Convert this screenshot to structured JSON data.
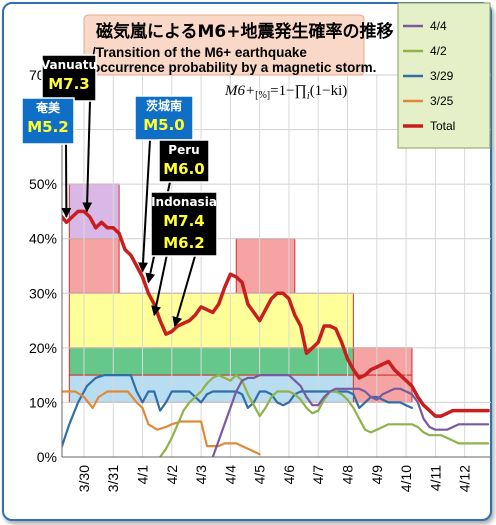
{
  "chart_data": {
    "type": "line",
    "title": "磁気嵐によるM6+地震発生確率の推移",
    "subtitle": "/Transition of the M6+ earthquake occurrence probability by a magnetic storm.",
    "formula": "M6+[%]=1−∏i(1−ki)",
    "formula_parts": {
      "lhs": "M6+",
      "sub": "[%]",
      "rhs": "=1−∏",
      "idx": "i",
      "tail": "(1−ki)"
    },
    "xlabel": "",
    "ylabel": "",
    "x_ticks": [
      "3/30",
      "3/31",
      "4/1",
      "4/2",
      "4/3",
      "4/4",
      "4/5",
      "4/6",
      "4/7",
      "4/8",
      "4/9",
      "4/10",
      "4/11",
      "4/12"
    ],
    "x_range": [
      -0.75,
      13.9
    ],
    "ylim": [
      0,
      70
    ],
    "y_ticks": [
      "0%",
      "10%",
      "20%",
      "30%",
      "40%",
      "50%",
      "60%",
      "70%"
    ],
    "grid": true,
    "legend_position": "top-right",
    "legend": [
      {
        "name": "4/4",
        "color": "#7a5a9e"
      },
      {
        "name": "4/2",
        "color": "#8db34a"
      },
      {
        "name": "3/29",
        "color": "#2f6fa8"
      },
      {
        "name": "3/25",
        "color": "#e08a38"
      },
      {
        "name": "Total",
        "color": "#c81e1e"
      }
    ],
    "rects": [
      {
        "x0": -0.5,
        "x1": 1.2,
        "y0": 40,
        "y1": 50,
        "fill": "#d9b8e8"
      },
      {
        "x0": -0.5,
        "x1": 1.2,
        "y0": 30,
        "y1": 40,
        "fill": "#f5a3a3"
      },
      {
        "x0": 5.2,
        "x1": 7.2,
        "y0": 30,
        "y1": 40,
        "fill": "#f5a3a3"
      },
      {
        "x0": -0.5,
        "x1": 9.2,
        "y0": 20,
        "y1": 30,
        "fill": "#ffff99"
      },
      {
        "x0": -0.5,
        "x1": 11.2,
        "y0": 15,
        "y1": 20,
        "fill": "#66c78a"
      },
      {
        "x0": -0.5,
        "x1": 11.2,
        "y0": 10,
        "y1": 15,
        "fill": "#b8dcf0"
      },
      {
        "x0": 9.2,
        "x1": 11.2,
        "y0": 15,
        "y1": 20,
        "fill": "#f5a3a3"
      },
      {
        "x0": 9.2,
        "x1": 11.2,
        "y0": 10,
        "y1": 15,
        "fill": "#f5a3a3"
      }
    ],
    "series": [
      {
        "name": "Total",
        "color": "#c81e1e",
        "width": 3.5,
        "x": [
          -0.75,
          -0.6,
          -0.4,
          -0.2,
          0,
          0.2,
          0.4,
          0.6,
          0.8,
          1,
          1.2,
          1.4,
          1.6,
          1.8,
          2,
          2.2,
          2.4,
          2.6,
          2.8,
          3,
          3.2,
          3.4,
          3.6,
          3.8,
          4,
          4.2,
          4.4,
          4.6,
          4.8,
          5,
          5.2,
          5.4,
          5.6,
          5.8,
          6,
          6.2,
          6.4,
          6.6,
          6.8,
          7,
          7.2,
          7.4,
          7.6,
          7.8,
          8,
          8.2,
          8.4,
          8.6,
          8.8,
          9,
          9.2,
          9.4,
          9.6,
          9.8,
          10,
          10.2,
          10.4,
          10.6,
          10.8,
          11,
          11.2,
          11.4,
          11.6,
          11.8,
          12,
          12.2,
          12.4,
          12.6,
          12.8,
          13,
          13.2,
          13.4,
          13.6,
          13.8
        ],
        "y": [
          44,
          43,
          44,
          45,
          45,
          44,
          42,
          43,
          42,
          42,
          41,
          38,
          37,
          35,
          33,
          30,
          28,
          25,
          22.5,
          23,
          24,
          24.5,
          25,
          26,
          27.5,
          27,
          26.5,
          28,
          31,
          33.5,
          33,
          32,
          28,
          26.5,
          25,
          27,
          29,
          30,
          30,
          29,
          26,
          24,
          19,
          20,
          21,
          24,
          24,
          23.5,
          21,
          18,
          16,
          14.5,
          15,
          16,
          16.5,
          17,
          17.5,
          16,
          15,
          14,
          13,
          11,
          9.5,
          8.5,
          7.5,
          7.5,
          8,
          8.5,
          8.5,
          8.5,
          8.5,
          8.5,
          8.5,
          8.5
        ]
      },
      {
        "name": "3/29",
        "color": "#2f6fa8",
        "width": 2.2,
        "x": [
          -0.75,
          -0.5,
          -0.2,
          0.1,
          0.4,
          0.7,
          1,
          1.3,
          1.6,
          1.8,
          2,
          2.2,
          2.4,
          2.6,
          2.8,
          3,
          3.2,
          3.4,
          3.6,
          3.8,
          4,
          4.2,
          4.4,
          4.6,
          4.8,
          5,
          5.2,
          5.4,
          5.6,
          5.8,
          6,
          6.2,
          6.4,
          6.6,
          6.8,
          7,
          7.2,
          7.4,
          7.6,
          7.8,
          8,
          8.2,
          8.4,
          8.6,
          8.8,
          9,
          9.2,
          9.4,
          9.6,
          9.8,
          10,
          10.2,
          10.4,
          10.6,
          10.8,
          11,
          11.2
        ],
        "y": [
          2,
          6,
          10,
          13,
          14.5,
          15,
          15,
          15,
          15,
          12,
          10,
          12,
          12,
          8.5,
          10,
          12,
          12,
          12,
          12,
          11,
          10,
          11.5,
          12,
          12,
          12,
          12,
          12,
          11.5,
          9,
          10,
          12,
          12,
          11.5,
          10,
          9.5,
          10,
          11.5,
          12,
          12,
          12,
          12,
          12,
          12,
          12,
          12,
          12,
          11.5,
          9,
          10,
          11,
          11,
          10.5,
          10,
          10,
          10,
          9.5,
          9
        ]
      },
      {
        "name": "3/25",
        "color": "#e08a38",
        "width": 2.2,
        "x": [
          -0.75,
          -0.5,
          -0.3,
          0,
          0.3,
          0.5,
          0.8,
          1.2,
          1.5,
          1.8,
          2,
          2.2,
          2.5,
          2.8,
          3,
          3.3,
          3.6,
          3.8,
          4,
          4.2,
          4.4,
          4.6,
          4.8,
          5,
          5.2,
          5.4,
          5.6,
          5.8,
          6
        ],
        "y": [
          12,
          12,
          12,
          11,
          9,
          11,
          12,
          12,
          12,
          10,
          9,
          6,
          5,
          5.5,
          6,
          6.5,
          6.5,
          6.5,
          6.5,
          2,
          2,
          2,
          2.5,
          2.5,
          2.5,
          2,
          1.5,
          1,
          0.5
        ]
      },
      {
        "name": "4/2",
        "color": "#8db34a",
        "width": 2.2,
        "x": [
          2.6,
          2.8,
          3,
          3.2,
          3.4,
          3.6,
          3.8,
          4,
          4.2,
          4.4,
          4.6,
          4.8,
          5,
          5.2,
          5.4,
          5.6,
          5.8,
          6,
          6.2,
          6.4,
          6.6,
          6.8,
          7,
          7.2,
          7.4,
          7.6,
          7.8,
          8,
          8.2,
          8.4,
          8.6,
          8.8,
          9,
          9.2,
          9.4,
          9.6,
          9.8,
          10,
          10.2,
          10.4,
          10.6,
          10.8,
          11,
          11.2,
          11.4,
          11.6,
          11.8,
          12,
          12.2,
          12.4,
          12.6,
          12.8,
          13,
          13.2,
          13.4,
          13.6,
          13.8
        ],
        "y": [
          0,
          1.5,
          3.5,
          6,
          8.5,
          10,
          11,
          12,
          13.5,
          14.5,
          15,
          14.5,
          14,
          15,
          14,
          11.5,
          9.5,
          7.5,
          9,
          11,
          12,
          12,
          12,
          11.5,
          10.5,
          9,
          8,
          8.5,
          10.5,
          12,
          12,
          11.5,
          10.5,
          9,
          7,
          5,
          4.5,
          5,
          5.5,
          6,
          6,
          6,
          6,
          6,
          5.5,
          4.5,
          4,
          4,
          4,
          3.5,
          3,
          2.5,
          2.5,
          2.5,
          2.5,
          2.5,
          2.5
        ]
      },
      {
        "name": "4/4",
        "color": "#7a5a9e",
        "width": 2.2,
        "x": [
          4.4,
          4.6,
          4.8,
          5,
          5.2,
          5.4,
          5.6,
          5.8,
          6,
          6.2,
          6.4,
          6.6,
          6.8,
          7,
          7.2,
          7.4,
          7.6,
          7.8,
          8,
          8.2,
          8.4,
          8.6,
          8.8,
          9,
          9.2,
          9.4,
          9.6,
          9.8,
          10,
          10.2,
          10.4,
          10.6,
          10.8,
          11,
          11.2,
          11.4,
          11.6,
          11.8,
          12,
          12.2,
          12.4,
          12.6,
          12.8,
          13,
          13.2,
          13.4,
          13.6,
          13.8
        ],
        "y": [
          0,
          3,
          6,
          9,
          12,
          14,
          14.5,
          14.5,
          15,
          15,
          15,
          15,
          15,
          15,
          14,
          13,
          11,
          9.5,
          9.5,
          11,
          12,
          12.5,
          12.5,
          12.5,
          12.5,
          12.5,
          12,
          11,
          10.5,
          11.5,
          12,
          12.5,
          12.5,
          12,
          11.5,
          10,
          7,
          5.5,
          5,
          5,
          5,
          5.5,
          6,
          6,
          6,
          6,
          6,
          6
        ]
      }
    ],
    "annotations": [
      {
        "id": "vanuatu",
        "place": "Vanuatu",
        "mag": "M7.3",
        "target": [
          0.1,
          45
        ],
        "fill": "#000000"
      },
      {
        "id": "amami",
        "place": "奄美",
        "mag": "M5.2",
        "target": [
          -0.6,
          44
        ],
        "fill": "#0f6fc6"
      },
      {
        "id": "ibaraki",
        "place": "茨城南",
        "mag": "M5.0",
        "target": [
          2.0,
          34
        ],
        "fill": "#0f6fc6"
      },
      {
        "id": "peru",
        "place": "Peru",
        "mag": "M6.0",
        "target": [
          2.2,
          32
        ],
        "fill": "#000000"
      },
      {
        "id": "indonasia",
        "place": "Indonasia",
        "mag": "M7.4",
        "mag2": "M6.2",
        "target": [
          2.4,
          26
        ],
        "target2": [
          3.1,
          24
        ],
        "fill": "#000000"
      }
    ]
  }
}
